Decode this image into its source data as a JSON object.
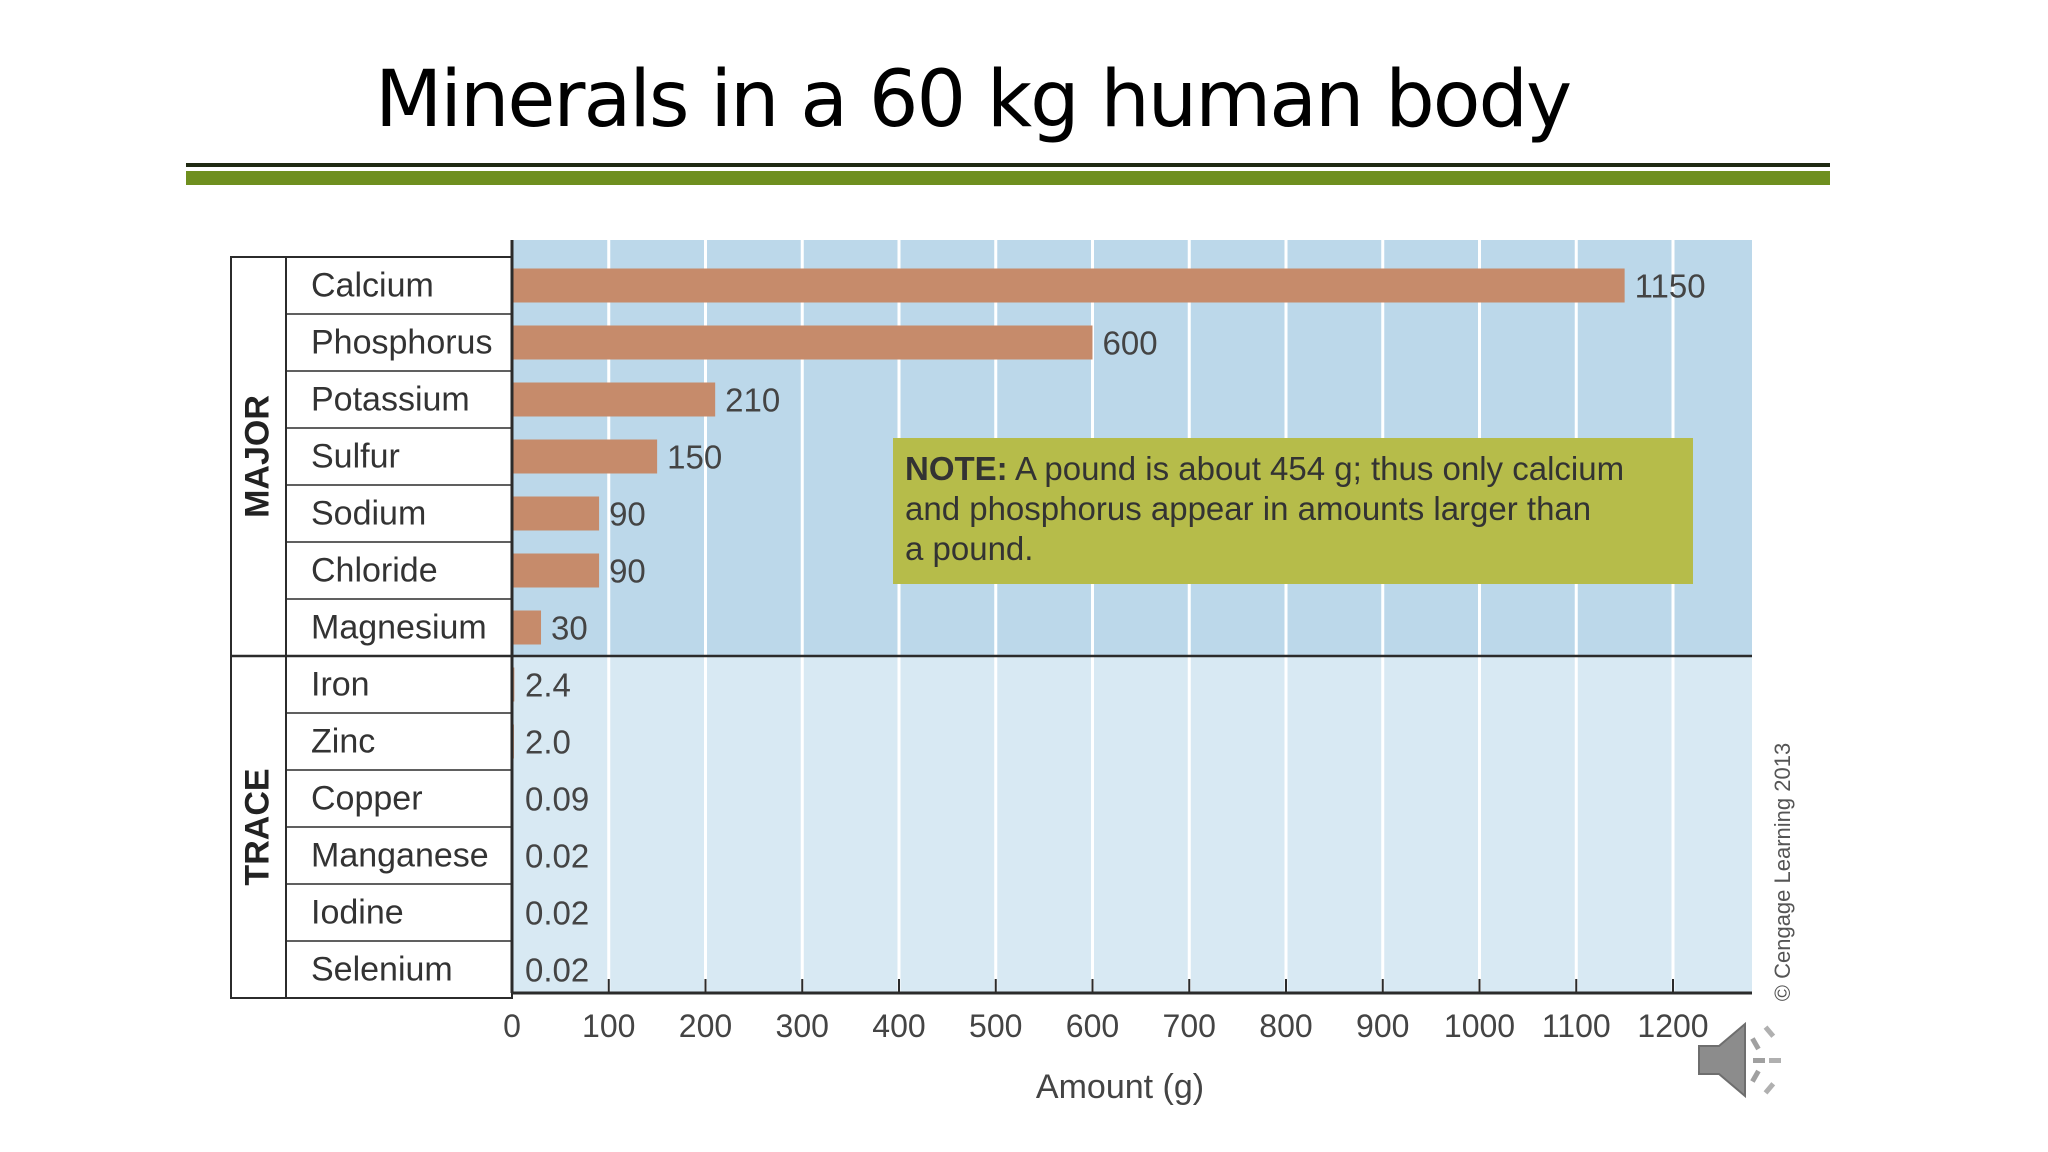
{
  "title": "Minerals in a 60 kg human body",
  "colors": {
    "bar": "#c68b6b",
    "plot_bg_major": "#bcd8ea",
    "plot_bg_trace": "#d8e9f3",
    "note_bg": "#b6bc4a",
    "rule_green": "#6f8f1f"
  },
  "chart_data": {
    "type": "bar",
    "orientation": "horizontal",
    "title": "",
    "xlabel": "Amount (g)",
    "ylabel": "",
    "xlim": [
      0,
      1290
    ],
    "xticks": [
      "0",
      "100",
      "200",
      "300",
      "400",
      "500",
      "600",
      "700",
      "800",
      "900",
      "1000",
      "1100",
      "1200"
    ],
    "grid": true,
    "groups": [
      {
        "name": "MAJOR",
        "categories": [
          "Calcium",
          "Phosphorus",
          "Potassium",
          "Sulfur",
          "Sodium",
          "Chloride",
          "Magnesium"
        ]
      },
      {
        "name": "TRACE",
        "categories": [
          "Iron",
          "Zinc",
          "Copper",
          "Manganese",
          "Iodine",
          "Selenium"
        ]
      }
    ],
    "categories": [
      "Calcium",
      "Phosphorus",
      "Potassium",
      "Sulfur",
      "Sodium",
      "Chloride",
      "Magnesium",
      "Iron",
      "Zinc",
      "Copper",
      "Manganese",
      "Iodine",
      "Selenium"
    ],
    "values": [
      1150,
      600,
      210,
      150,
      90,
      90,
      30,
      2.4,
      2.0,
      0.09,
      0.02,
      0.02,
      0.02
    ],
    "value_labels": [
      "1150",
      "600",
      "210",
      "150",
      "90",
      "90",
      "30",
      "2.4",
      "2.0",
      "0.09",
      "0.02",
      "0.02",
      "0.02"
    ],
    "note": {
      "bold": "NOTE:",
      "lines": [
        " A pound is about 454 g; thus only calcium",
        "and phosphorus appear in amounts larger than",
        "a pound."
      ]
    },
    "credit": "© Cengage Learning 2013"
  },
  "icons": {
    "audio": "speaker-icon"
  }
}
